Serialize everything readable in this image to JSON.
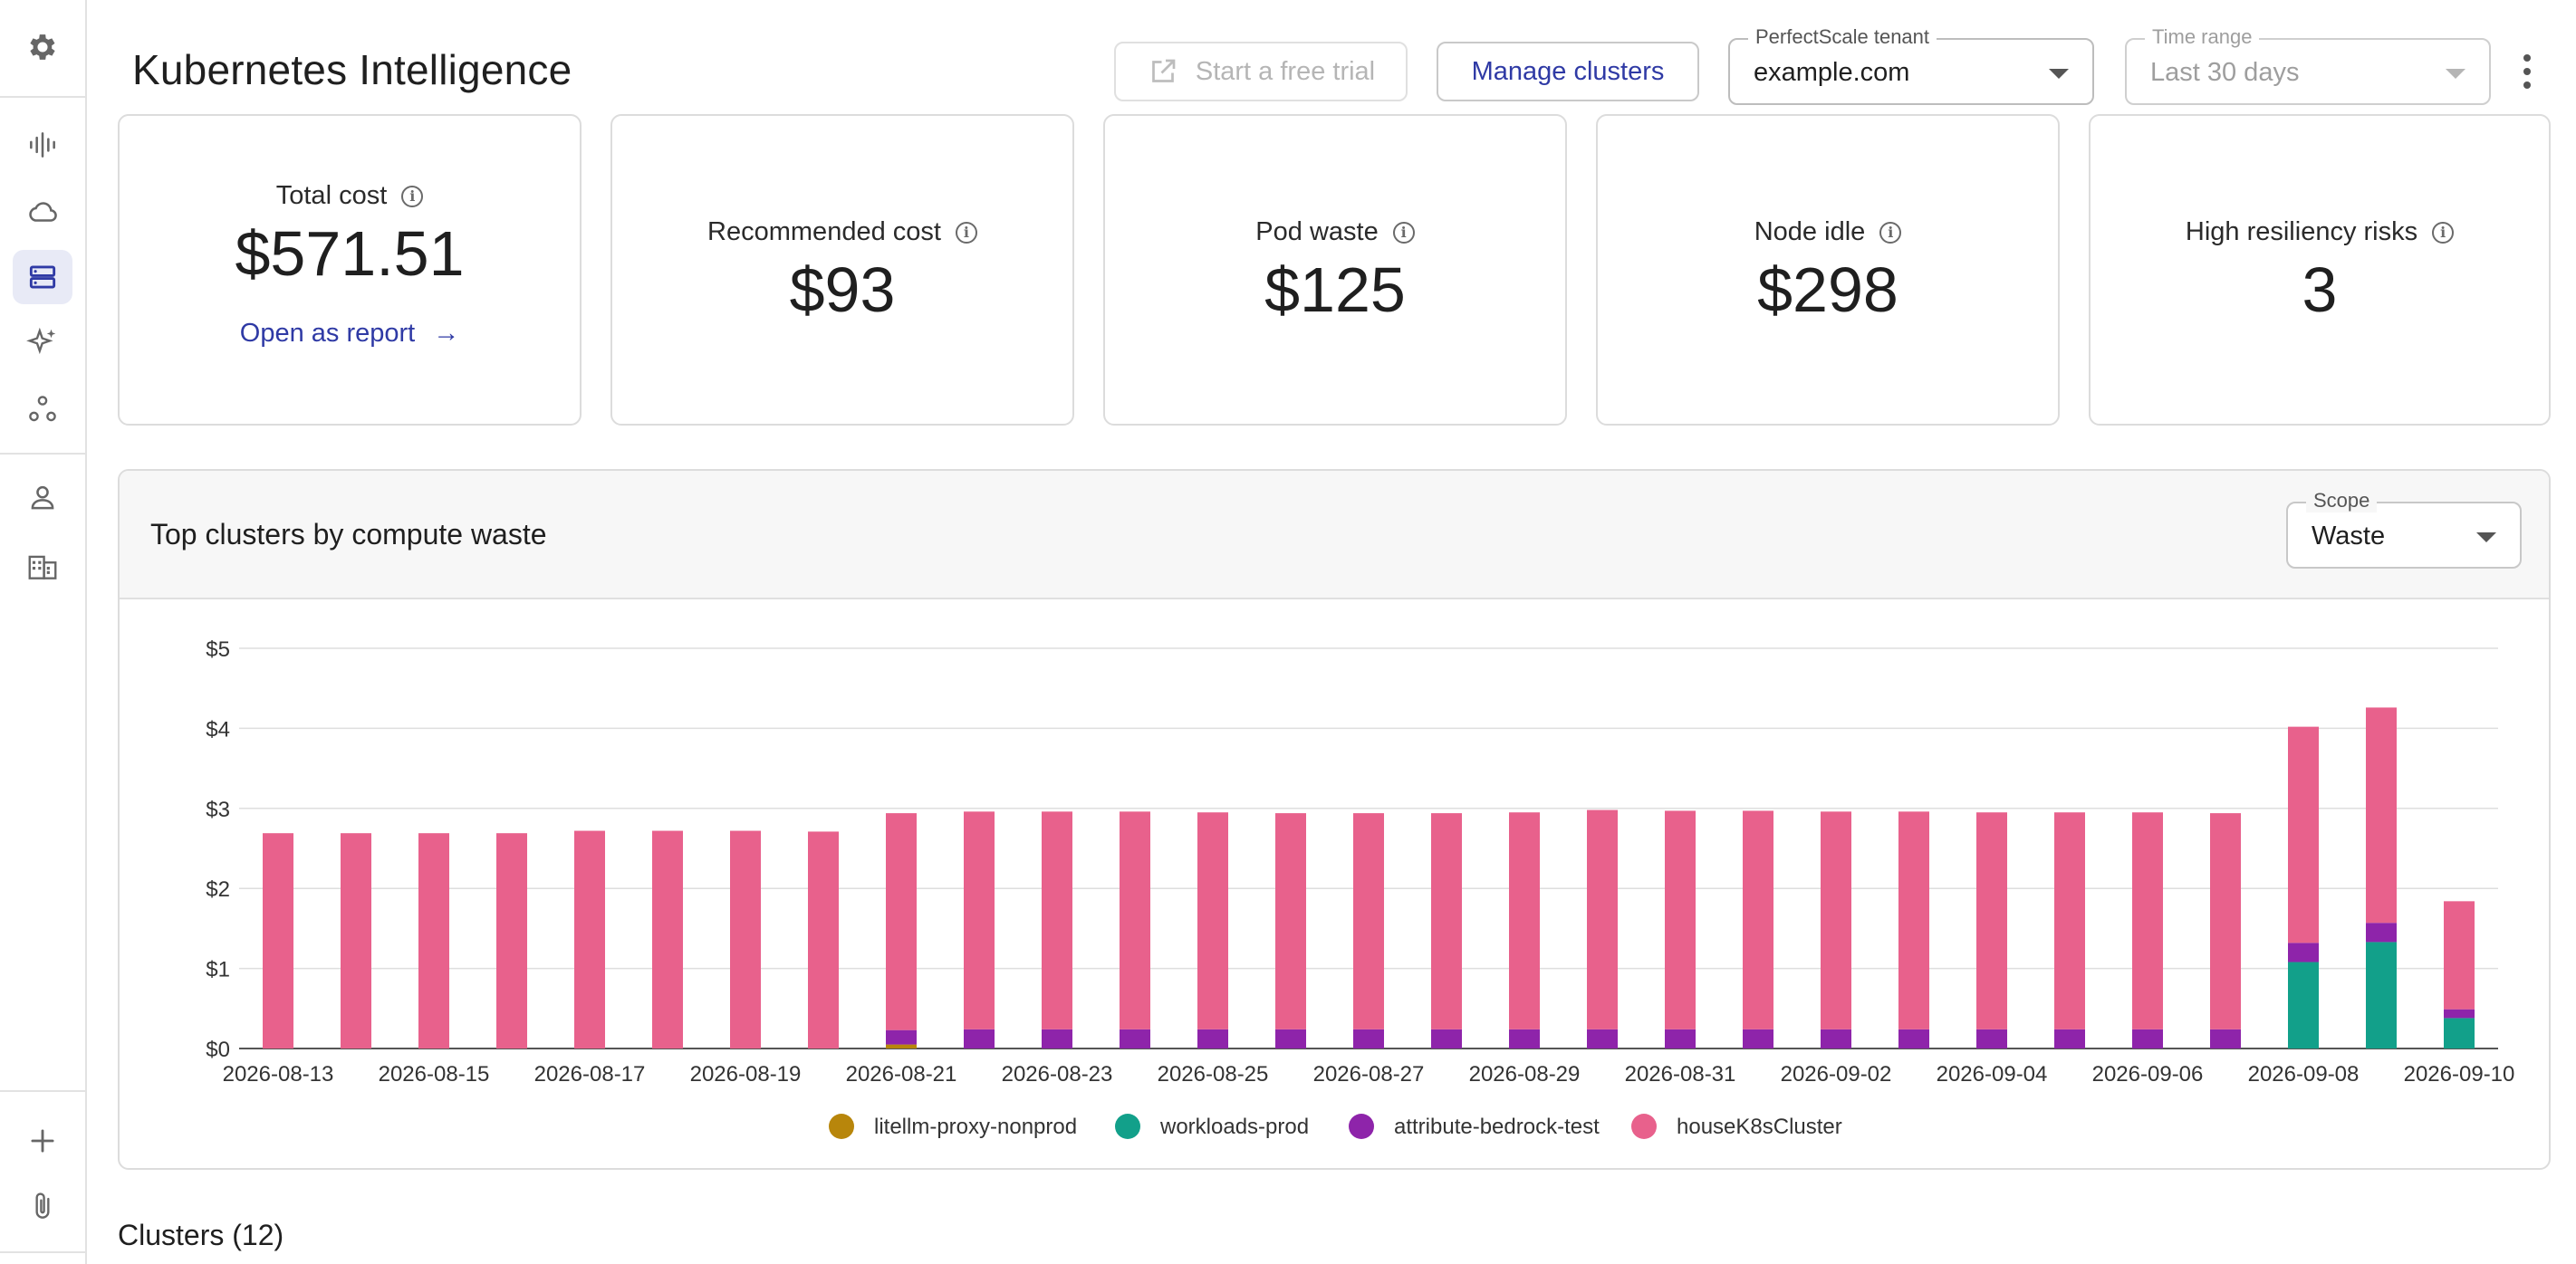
{
  "header": {
    "title": "Kubernetes Intelligence",
    "trial_label": "Start a free trial",
    "manage_label": "Manage clusters",
    "tenant": {
      "label": "PerfectScale tenant",
      "value": "example.com"
    },
    "time_range": {
      "label": "Time range",
      "value": "Last 30 days"
    }
  },
  "sidebar": {
    "top_icons": [
      "settings-icon"
    ],
    "nav_icons": [
      "waveform-icon",
      "cloud-icon",
      "clusters-icon",
      "sparkles-icon",
      "workflow-icon"
    ],
    "lower_icons": [
      "user-icon",
      "organization-icon"
    ],
    "bottom_icons": [
      "add-icon",
      "attachment-icon"
    ],
    "active": "clusters-icon"
  },
  "cards": {
    "total": {
      "title": "Total cost",
      "value": "$571.51",
      "link": "Open as report"
    },
    "recommended": {
      "title": "Recommended cost",
      "value": "$93"
    },
    "pod_waste": {
      "title": "Pod waste",
      "value": "$125"
    },
    "node_idle": {
      "title": "Node idle",
      "value": "$298"
    },
    "risks": {
      "title": "High resiliency risks",
      "value": "3"
    }
  },
  "panel": {
    "title": "Top clusters by compute waste",
    "scope": {
      "label": "Scope",
      "value": "Waste"
    }
  },
  "clusters_heading": "Clusters (12)",
  "chart_data": {
    "type": "bar",
    "stacked": true,
    "title": "",
    "xlabel": "",
    "ylabel": "",
    "ylim": [
      0,
      5
    ],
    "yticks": [
      "$0",
      "$1",
      "$2",
      "$3",
      "$4",
      "$5"
    ],
    "grid": true,
    "legend_position": "bottom",
    "x": [
      "2026-08-13",
      "2026-08-14",
      "2026-08-15",
      "2026-08-16",
      "2026-08-17",
      "2026-08-18",
      "2026-08-19",
      "2026-08-20",
      "2026-08-21",
      "2026-08-22",
      "2026-08-23",
      "2026-08-24",
      "2026-08-25",
      "2026-08-26",
      "2026-08-27",
      "2026-08-28",
      "2026-08-29",
      "2026-08-30",
      "2026-08-31",
      "2026-09-01",
      "2026-09-02",
      "2026-09-03",
      "2026-09-04",
      "2026-09-05",
      "2026-09-06",
      "2026-09-07",
      "2026-09-08",
      "2026-09-09",
      "2026-09-10"
    ],
    "xtick_labels": [
      "2026-08-13",
      "2026-08-15",
      "2026-08-17",
      "2026-08-19",
      "2026-08-21",
      "2026-08-23",
      "2026-08-25",
      "2026-08-27",
      "2026-08-29",
      "2026-08-31",
      "2026-09-02",
      "2026-09-04",
      "2026-09-06",
      "2026-09-08",
      "2026-09-10"
    ],
    "series": [
      {
        "name": "litellm-proxy-nonprod",
        "color": "#b8860b",
        "values": [
          0,
          0,
          0,
          0,
          0,
          0,
          0,
          0,
          0.05,
          0,
          0,
          0,
          0,
          0,
          0,
          0,
          0,
          0,
          0,
          0,
          0,
          0,
          0,
          0,
          0,
          0,
          0,
          0,
          0
        ]
      },
      {
        "name": "workloads-prod",
        "color": "#12a08a",
        "values": [
          0,
          0,
          0,
          0,
          0,
          0,
          0,
          0,
          0,
          0,
          0,
          0,
          0,
          0,
          0,
          0,
          0,
          0,
          0,
          0,
          0,
          0,
          0,
          0,
          0,
          0,
          1.08,
          1.33,
          0.38
        ]
      },
      {
        "name": "attribute-bedrock-test",
        "color": "#8e24aa",
        "values": [
          0,
          0,
          0,
          0,
          0,
          0,
          0,
          0,
          0.18,
          0.24,
          0.24,
          0.24,
          0.24,
          0.24,
          0.24,
          0.24,
          0.24,
          0.24,
          0.24,
          0.24,
          0.24,
          0.24,
          0.24,
          0.24,
          0.24,
          0.24,
          0.24,
          0.24,
          0.11
        ]
      },
      {
        "name": "houseK8sCluster",
        "color": "#e8618c",
        "values": [
          2.69,
          2.69,
          2.69,
          2.69,
          2.72,
          2.72,
          2.72,
          2.71,
          2.71,
          2.72,
          2.72,
          2.72,
          2.71,
          2.7,
          2.7,
          2.7,
          2.71,
          2.74,
          2.73,
          2.73,
          2.72,
          2.72,
          2.71,
          2.71,
          2.71,
          2.7,
          2.7,
          2.69,
          1.35
        ]
      }
    ]
  }
}
